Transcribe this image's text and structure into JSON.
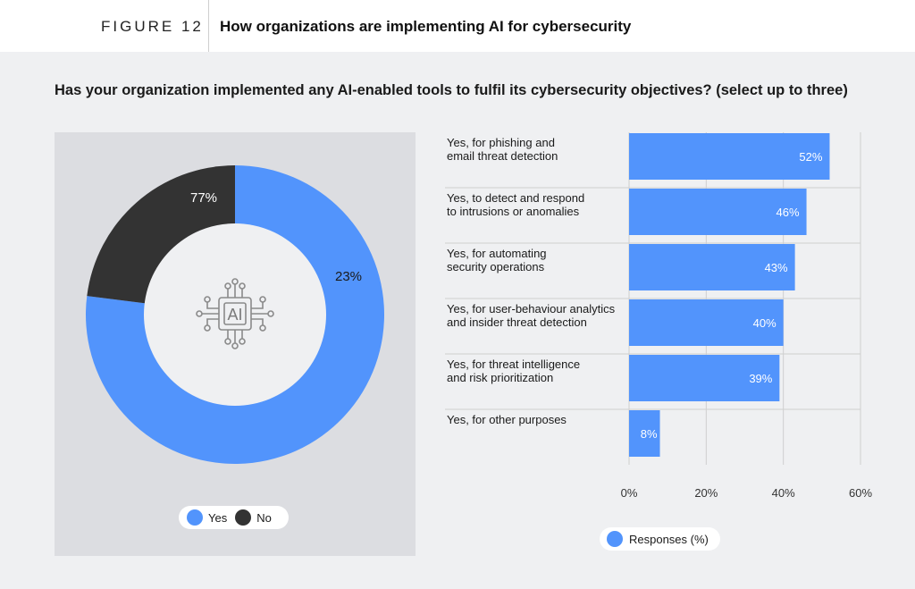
{
  "figure": {
    "label": "FIGURE 12",
    "title": "How organizations are implementing AI for cybersecurity"
  },
  "question": "Has your organization implemented any AI-enabled tools to fulfil its cybersecurity objectives? (select up to three)",
  "colors": {
    "blue": "#5294fc",
    "dark": "#333333",
    "panel": "#eff0f2",
    "donut_panel": "#dcdde1"
  },
  "center_icon": {
    "name": "ai-chip-icon",
    "text": "AI"
  },
  "chart_data": [
    {
      "type": "pie",
      "variant": "donut",
      "slices": [
        {
          "label": "Yes",
          "value": 77,
          "value_label": "77%",
          "color": "#5294fc"
        },
        {
          "label": "No",
          "value": 23,
          "value_label": "23%",
          "color": "#333333"
        }
      ],
      "legend": [
        "Yes",
        "No"
      ],
      "legend_position": "bottom"
    },
    {
      "type": "bar",
      "orientation": "horizontal",
      "categories": [
        [
          "Yes, for phishing and",
          "email threat detection"
        ],
        [
          "Yes, to detect and respond",
          "to intrusions or anomalies"
        ],
        [
          "Yes, for automating",
          "security operations"
        ],
        [
          "Yes, for user-behaviour analytics",
          "and insider threat detection"
        ],
        [
          "Yes, for threat intelligence",
          "and risk prioritization"
        ],
        [
          "Yes, for other purposes"
        ]
      ],
      "values": [
        52,
        46,
        43,
        40,
        39,
        8
      ],
      "value_labels": [
        "52%",
        "46%",
        "43%",
        "40%",
        "39%",
        "8%"
      ],
      "xlim": [
        0,
        60
      ],
      "xticks": [
        "0%",
        "20%",
        "40%",
        "60%"
      ],
      "series_name": "Responses (%)",
      "color": "#5294fc",
      "grid": true,
      "legend_position": "bottom"
    }
  ]
}
